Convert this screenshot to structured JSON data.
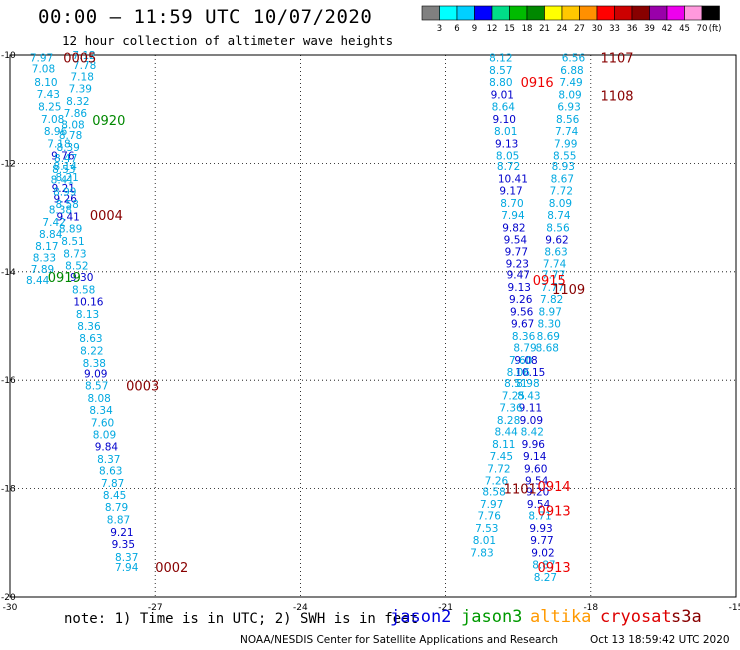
{
  "header": {
    "title": "00:00 – 11:59 UTC 10/07/2020",
    "subtitle": "12 hour collection of altimeter wave heights"
  },
  "legend": {
    "unit": "(ft)",
    "ticks": [
      "3",
      "6",
      "9",
      "12",
      "15",
      "18",
      "21",
      "24",
      "27",
      "30",
      "33",
      "36",
      "39",
      "42",
      "45",
      "70"
    ],
    "colors": [
      "#808080",
      "#00ffff",
      "#00d0ff",
      "#0000ff",
      "#00dd88",
      "#00bb00",
      "#008800",
      "#ffff00",
      "#ffc800",
      "#ff9000",
      "#ff0000",
      "#cc0000",
      "#880000",
      "#9900aa",
      "#ee00ee",
      "#ff99dd",
      "#000000"
    ]
  },
  "map": {
    "lon_range": [
      -30,
      -15
    ],
    "lat_range": [
      -20,
      -10
    ],
    "x_ticks": [
      "-30",
      "-27",
      "-24",
      "-21",
      "-18",
      "-15"
    ],
    "x_values": [
      -30,
      -27,
      -24,
      -21,
      -18,
      -15
    ],
    "y_ticks": [
      "-10",
      "-12",
      "-14",
      "-16",
      "-18",
      "-20"
    ],
    "y_values": [
      -10,
      -12,
      -14,
      -16,
      -18,
      -20
    ],
    "grid": "dotted",
    "colors": {
      "jason2": "#0000dd",
      "jason3": "#009900",
      "altika": "#ff9900",
      "cryosat": "#dd0000",
      "s3a": "#880000",
      "c_cyan": "#00a8e0",
      "c_blue": "#0000cc",
      "c_green": "#008800",
      "c_red": "#ee0000",
      "c_maroon": "#880000"
    }
  },
  "chart_data": {
    "type": "scatter",
    "x_label": "",
    "y_label": "",
    "points": [
      {
        "lon": -29.59,
        "lat": -10.05,
        "v": "7.97",
        "c": "c_cyan"
      },
      {
        "lon": -29.55,
        "lat": -10.25,
        "v": "7.08",
        "c": "c_cyan"
      },
      {
        "lon": -29.5,
        "lat": -10.5,
        "v": "8.10",
        "c": "c_cyan"
      },
      {
        "lon": -29.45,
        "lat": -10.72,
        "v": "7.43",
        "c": "c_cyan"
      },
      {
        "lon": -29.42,
        "lat": -10.95,
        "v": "8.25",
        "c": "c_cyan"
      },
      {
        "lon": -29.36,
        "lat": -11.18,
        "v": "7.08",
        "c": "c_cyan"
      },
      {
        "lon": -29.3,
        "lat": -11.4,
        "v": "8.96",
        "c": "c_cyan"
      },
      {
        "lon": -29.23,
        "lat": -11.63,
        "v": "7.18",
        "c": "c_cyan"
      },
      {
        "lon": -29.15,
        "lat": -11.85,
        "v": "9.76",
        "c": "c_blue"
      },
      {
        "lon": -29.1,
        "lat": -12.05,
        "v": "8.14",
        "c": "c_cyan"
      },
      {
        "lon": -29.06,
        "lat": -12.25,
        "v": "8.21",
        "c": "c_cyan"
      },
      {
        "lon": -29.14,
        "lat": -12.45,
        "v": "9.21",
        "c": "c_blue"
      },
      {
        "lon": -29.1,
        "lat": -12.65,
        "v": "9.26",
        "c": "c_blue"
      },
      {
        "lon": -29.2,
        "lat": -12.85,
        "v": "8.38",
        "c": "c_cyan"
      },
      {
        "lon": -29.33,
        "lat": -13.08,
        "v": "7.42",
        "c": "c_cyan"
      },
      {
        "lon": -29.4,
        "lat": -13.3,
        "v": "8.84",
        "c": "c_cyan"
      },
      {
        "lon": -29.48,
        "lat": -13.52,
        "v": "8.17",
        "c": "c_cyan"
      },
      {
        "lon": -29.53,
        "lat": -13.74,
        "v": "8.33",
        "c": "c_cyan"
      },
      {
        "lon": -29.57,
        "lat": -13.95,
        "v": "7.89",
        "c": "c_cyan"
      },
      {
        "lon": -29.67,
        "lat": -14.15,
        "v": "8.44",
        "c": "c_cyan"
      },
      {
        "lon": -28.71,
        "lat": -10.0,
        "v": "7.12",
        "c": "c_cyan"
      },
      {
        "lon": -28.7,
        "lat": -10.18,
        "v": "7.78",
        "c": "c_cyan"
      },
      {
        "lon": -28.75,
        "lat": -10.4,
        "v": "7.18",
        "c": "c_cyan"
      },
      {
        "lon": -28.79,
        "lat": -10.62,
        "v": "7.39",
        "c": "c_cyan"
      },
      {
        "lon": -28.84,
        "lat": -10.85,
        "v": "8.32",
        "c": "c_cyan"
      },
      {
        "lon": -28.89,
        "lat": -11.07,
        "v": "7.86",
        "c": "c_cyan"
      },
      {
        "lon": -28.94,
        "lat": -11.28,
        "v": "8.08",
        "c": "c_cyan"
      },
      {
        "lon": -28.99,
        "lat": -11.48,
        "v": "8.78",
        "c": "c_cyan"
      },
      {
        "lon": -29.04,
        "lat": -11.7,
        "v": "8.39",
        "c": "c_cyan"
      },
      {
        "lon": -29.09,
        "lat": -11.9,
        "v": "8.47",
        "c": "c_cyan"
      },
      {
        "lon": -29.13,
        "lat": -12.1,
        "v": "8.53",
        "c": "c_cyan"
      },
      {
        "lon": -29.16,
        "lat": -12.3,
        "v": "8.41",
        "c": "c_cyan"
      },
      {
        "lon": -29.11,
        "lat": -12.52,
        "v": "8.99",
        "c": "c_cyan"
      },
      {
        "lon": -29.06,
        "lat": -12.75,
        "v": "8.58",
        "c": "c_cyan"
      },
      {
        "lon": -29.04,
        "lat": -12.98,
        "v": "9.41",
        "c": "c_blue"
      },
      {
        "lon": -28.99,
        "lat": -13.2,
        "v": "8.89",
        "c": "c_cyan"
      },
      {
        "lon": -28.94,
        "lat": -13.43,
        "v": "8.51",
        "c": "c_cyan"
      },
      {
        "lon": -28.9,
        "lat": -13.66,
        "v": "8.73",
        "c": "c_cyan"
      },
      {
        "lon": -28.86,
        "lat": -13.88,
        "v": "8.52",
        "c": "c_cyan"
      },
      {
        "lon": -28.76,
        "lat": -14.1,
        "v": "9.30",
        "c": "c_blue"
      },
      {
        "lon": -28.72,
        "lat": -14.33,
        "v": "8.58",
        "c": "c_cyan"
      },
      {
        "lon": -28.69,
        "lat": -14.55,
        "v": "10.16",
        "c": "c_blue"
      },
      {
        "lon": -28.64,
        "lat": -14.78,
        "v": "8.13",
        "c": "c_cyan"
      },
      {
        "lon": -28.61,
        "lat": -15.0,
        "v": "8.36",
        "c": "c_cyan"
      },
      {
        "lon": -28.57,
        "lat": -15.22,
        "v": "8.63",
        "c": "c_cyan"
      },
      {
        "lon": -28.55,
        "lat": -15.45,
        "v": "8.22",
        "c": "c_cyan"
      },
      {
        "lon": -28.5,
        "lat": -15.68,
        "v": "8.38",
        "c": "c_cyan"
      },
      {
        "lon": -28.47,
        "lat": -15.88,
        "v": "9.09",
        "c": "c_blue"
      },
      {
        "lon": -28.45,
        "lat": -16.1,
        "v": "8.57",
        "c": "c_cyan"
      },
      {
        "lon": -28.4,
        "lat": -16.33,
        "v": "8.08",
        "c": "c_cyan"
      },
      {
        "lon": -28.36,
        "lat": -16.55,
        "v": "8.34",
        "c": "c_cyan"
      },
      {
        "lon": -28.33,
        "lat": -16.78,
        "v": "7.60",
        "c": "c_cyan"
      },
      {
        "lon": -28.29,
        "lat": -17.0,
        "v": "8.09",
        "c": "c_cyan"
      },
      {
        "lon": -28.25,
        "lat": -17.22,
        "v": "9.84",
        "c": "c_blue"
      },
      {
        "lon": -28.2,
        "lat": -17.45,
        "v": "8.37",
        "c": "c_cyan"
      },
      {
        "lon": -28.16,
        "lat": -17.67,
        "v": "8.63",
        "c": "c_cyan"
      },
      {
        "lon": -28.12,
        "lat": -17.9,
        "v": "7.87",
        "c": "c_cyan"
      },
      {
        "lon": -28.08,
        "lat": -18.12,
        "v": "8.45",
        "c": "c_cyan"
      },
      {
        "lon": -28.04,
        "lat": -18.34,
        "v": "8.79",
        "c": "c_cyan"
      },
      {
        "lon": -28.0,
        "lat": -18.57,
        "v": "8.87",
        "c": "c_cyan"
      },
      {
        "lon": -27.93,
        "lat": -18.8,
        "v": "9.21",
        "c": "c_blue"
      },
      {
        "lon": -27.9,
        "lat": -19.02,
        "v": "9.35",
        "c": "c_blue"
      },
      {
        "lon": -27.83,
        "lat": -19.26,
        "v": "8.37",
        "c": "c_cyan"
      },
      {
        "lon": -27.83,
        "lat": -19.45,
        "v": "7.94",
        "c": "c_cyan"
      },
      {
        "lon": -20.1,
        "lat": -10.05,
        "v": "8.12",
        "c": "c_cyan"
      },
      {
        "lon": -20.1,
        "lat": -10.28,
        "v": "8.57",
        "c": "c_cyan"
      },
      {
        "lon": -20.1,
        "lat": -10.5,
        "v": "8.80",
        "c": "c_cyan"
      },
      {
        "lon": -20.07,
        "lat": -10.73,
        "v": "9.01",
        "c": "c_blue"
      },
      {
        "lon": -20.05,
        "lat": -10.95,
        "v": "8.64",
        "c": "c_cyan"
      },
      {
        "lon": -20.03,
        "lat": -11.18,
        "v": "9.10",
        "c": "c_blue"
      },
      {
        "lon": -20.0,
        "lat": -11.4,
        "v": "8.01",
        "c": "c_cyan"
      },
      {
        "lon": -19.98,
        "lat": -11.63,
        "v": "9.13",
        "c": "c_blue"
      },
      {
        "lon": -19.96,
        "lat": -11.85,
        "v": "8.05",
        "c": "c_cyan"
      },
      {
        "lon": -19.94,
        "lat": -12.05,
        "v": "8.72",
        "c": "c_cyan"
      },
      {
        "lon": -19.92,
        "lat": -12.28,
        "v": "10.41",
        "c": "c_blue"
      },
      {
        "lon": -19.89,
        "lat": -12.5,
        "v": "9.17",
        "c": "c_blue"
      },
      {
        "lon": -19.87,
        "lat": -12.73,
        "v": "8.70",
        "c": "c_cyan"
      },
      {
        "lon": -19.85,
        "lat": -12.95,
        "v": "7.94",
        "c": "c_cyan"
      },
      {
        "lon": -19.83,
        "lat": -13.18,
        "v": "9.82",
        "c": "c_blue"
      },
      {
        "lon": -19.8,
        "lat": -13.4,
        "v": "9.54",
        "c": "c_blue"
      },
      {
        "lon": -19.78,
        "lat": -13.63,
        "v": "9.77",
        "c": "c_blue"
      },
      {
        "lon": -19.76,
        "lat": -13.85,
        "v": "9.23",
        "c": "c_blue"
      },
      {
        "lon": -19.74,
        "lat": -14.05,
        "v": "9.47",
        "c": "c_blue"
      },
      {
        "lon": -19.72,
        "lat": -14.28,
        "v": "9.13",
        "c": "c_blue"
      },
      {
        "lon": -19.69,
        "lat": -14.5,
        "v": "9.26",
        "c": "c_blue"
      },
      {
        "lon": -19.67,
        "lat": -14.73,
        "v": "9.56",
        "c": "c_blue"
      },
      {
        "lon": -19.65,
        "lat": -14.95,
        "v": "9.67",
        "c": "c_blue"
      },
      {
        "lon": -19.63,
        "lat": -15.18,
        "v": "8.36",
        "c": "c_cyan"
      },
      {
        "lon": -19.6,
        "lat": -15.4,
        "v": "8.79",
        "c": "c_cyan"
      },
      {
        "lon": -19.58,
        "lat": -15.63,
        "v": "9.08",
        "c": "c_blue"
      },
      {
        "lon": -19.56,
        "lat": -15.85,
        "v": "10.15",
        "c": "c_blue"
      },
      {
        "lon": -19.54,
        "lat": -16.05,
        "v": "8.98",
        "c": "c_cyan"
      },
      {
        "lon": -19.52,
        "lat": -16.28,
        "v": "8.43",
        "c": "c_cyan"
      },
      {
        "lon": -19.49,
        "lat": -16.5,
        "v": "9.11",
        "c": "c_blue"
      },
      {
        "lon": -19.47,
        "lat": -16.73,
        "v": "9.09",
        "c": "c_blue"
      },
      {
        "lon": -19.45,
        "lat": -16.95,
        "v": "8.42",
        "c": "c_cyan"
      },
      {
        "lon": -19.43,
        "lat": -17.18,
        "v": "9.96",
        "c": "c_blue"
      },
      {
        "lon": -19.4,
        "lat": -17.4,
        "v": "9.14",
        "c": "c_blue"
      },
      {
        "lon": -19.38,
        "lat": -17.63,
        "v": "9.60",
        "c": "c_blue"
      },
      {
        "lon": -19.36,
        "lat": -17.85,
        "v": "9.54",
        "c": "c_blue"
      },
      {
        "lon": -19.34,
        "lat": -18.05,
        "v": "9.20",
        "c": "c_blue"
      },
      {
        "lon": -19.32,
        "lat": -18.28,
        "v": "9.54",
        "c": "c_blue"
      },
      {
        "lon": -19.29,
        "lat": -18.5,
        "v": "8.71",
        "c": "c_cyan"
      },
      {
        "lon": -19.27,
        "lat": -18.73,
        "v": "9.93",
        "c": "c_blue"
      },
      {
        "lon": -19.25,
        "lat": -18.95,
        "v": "9.77",
        "c": "c_blue"
      },
      {
        "lon": -19.23,
        "lat": -19.18,
        "v": "9.02",
        "c": "c_blue"
      },
      {
        "lon": -19.21,
        "lat": -19.4,
        "v": "8.87",
        "c": "c_cyan"
      },
      {
        "lon": -19.18,
        "lat": -19.63,
        "v": "8.27",
        "c": "c_cyan"
      },
      {
        "lon": -18.6,
        "lat": -10.05,
        "v": "6.56",
        "c": "c_cyan"
      },
      {
        "lon": -18.63,
        "lat": -10.28,
        "v": "6.88",
        "c": "c_cyan"
      },
      {
        "lon": -18.65,
        "lat": -10.5,
        "v": "7.49",
        "c": "c_cyan"
      },
      {
        "lon": -18.67,
        "lat": -10.73,
        "v": "8.09",
        "c": "c_cyan"
      },
      {
        "lon": -18.69,
        "lat": -10.95,
        "v": "6.93",
        "c": "c_cyan"
      },
      {
        "lon": -18.72,
        "lat": -11.18,
        "v": "8.56",
        "c": "c_cyan"
      },
      {
        "lon": -18.74,
        "lat": -11.4,
        "v": "7.74",
        "c": "c_cyan"
      },
      {
        "lon": -18.76,
        "lat": -11.63,
        "v": "7.99",
        "c": "c_cyan"
      },
      {
        "lon": -18.78,
        "lat": -11.85,
        "v": "8.55",
        "c": "c_cyan"
      },
      {
        "lon": -18.81,
        "lat": -12.05,
        "v": "8.93",
        "c": "c_cyan"
      },
      {
        "lon": -18.83,
        "lat": -12.28,
        "v": "8.67",
        "c": "c_cyan"
      },
      {
        "lon": -18.85,
        "lat": -12.5,
        "v": "7.72",
        "c": "c_cyan"
      },
      {
        "lon": -18.87,
        "lat": -12.73,
        "v": "8.09",
        "c": "c_cyan"
      },
      {
        "lon": -18.9,
        "lat": -12.95,
        "v": "8.74",
        "c": "c_cyan"
      },
      {
        "lon": -18.92,
        "lat": -13.18,
        "v": "8.56",
        "c": "c_cyan"
      },
      {
        "lon": -18.94,
        "lat": -13.4,
        "v": "9.62",
        "c": "c_blue"
      },
      {
        "lon": -18.96,
        "lat": -13.63,
        "v": "8.63",
        "c": "c_cyan"
      },
      {
        "lon": -18.99,
        "lat": -13.85,
        "v": "7.74",
        "c": "c_cyan"
      },
      {
        "lon": -19.01,
        "lat": -14.05,
        "v": "7.77",
        "c": "c_cyan"
      },
      {
        "lon": -19.03,
        "lat": -14.28,
        "v": "7.77",
        "c": "c_cyan"
      },
      {
        "lon": -19.05,
        "lat": -14.5,
        "v": "7.82",
        "c": "c_cyan"
      },
      {
        "lon": -19.08,
        "lat": -14.73,
        "v": "8.97",
        "c": "c_cyan"
      },
      {
        "lon": -19.1,
        "lat": -14.95,
        "v": "8.30",
        "c": "c_cyan"
      },
      {
        "lon": -19.12,
        "lat": -15.18,
        "v": "8.69",
        "c": "c_cyan"
      },
      {
        "lon": -19.14,
        "lat": -15.4,
        "v": "8.68",
        "c": "c_cyan"
      },
      {
        "lon": -19.69,
        "lat": -15.63,
        "v": "7.60",
        "c": "c_cyan"
      },
      {
        "lon": -19.74,
        "lat": -15.85,
        "v": "8.06",
        "c": "c_cyan"
      },
      {
        "lon": -19.79,
        "lat": -16.05,
        "v": "8.51",
        "c": "c_cyan"
      },
      {
        "lon": -19.84,
        "lat": -16.28,
        "v": "7.25",
        "c": "c_cyan"
      },
      {
        "lon": -19.89,
        "lat": -16.5,
        "v": "7.36",
        "c": "c_cyan"
      },
      {
        "lon": -19.94,
        "lat": -16.73,
        "v": "8.28",
        "c": "c_cyan"
      },
      {
        "lon": -19.99,
        "lat": -16.95,
        "v": "8.44",
        "c": "c_cyan"
      },
      {
        "lon": -20.04,
        "lat": -17.18,
        "v": "8.11",
        "c": "c_cyan"
      },
      {
        "lon": -20.09,
        "lat": -17.4,
        "v": "7.45",
        "c": "c_cyan"
      },
      {
        "lon": -20.14,
        "lat": -17.63,
        "v": "7.72",
        "c": "c_cyan"
      },
      {
        "lon": -20.19,
        "lat": -17.85,
        "v": "7.26",
        "c": "c_cyan"
      },
      {
        "lon": -20.24,
        "lat": -18.05,
        "v": "8.58",
        "c": "c_cyan"
      },
      {
        "lon": -20.29,
        "lat": -18.28,
        "v": "7.97",
        "c": "c_cyan"
      },
      {
        "lon": -20.34,
        "lat": -18.5,
        "v": "7.76",
        "c": "c_cyan"
      },
      {
        "lon": -20.39,
        "lat": -18.73,
        "v": "7.53",
        "c": "c_cyan"
      },
      {
        "lon": -20.44,
        "lat": -18.95,
        "v": "8.01",
        "c": "c_cyan"
      },
      {
        "lon": -20.49,
        "lat": -19.18,
        "v": "7.83",
        "c": "c_cyan"
      }
    ],
    "time_labels": [
      {
        "lon": -28.9,
        "lat": -10.05,
        "v": "0005",
        "c": "c_maroon"
      },
      {
        "lon": -28.3,
        "lat": -11.2,
        "v": "0920",
        "c": "c_green"
      },
      {
        "lon": -28.35,
        "lat": -12.95,
        "v": "0004",
        "c": "c_maroon"
      },
      {
        "lon": -29.22,
        "lat": -14.1,
        "v": "0919",
        "c": "c_green"
      },
      {
        "lon": -27.6,
        "lat": -16.1,
        "v": "0003",
        "c": "c_maroon"
      },
      {
        "lon": -27.0,
        "lat": -19.45,
        "v": "0002",
        "c": "c_maroon"
      },
      {
        "lon": -17.8,
        "lat": -10.05,
        "v": "1107",
        "c": "c_maroon"
      },
      {
        "lon": -19.45,
        "lat": -10.5,
        "v": "0916",
        "c": "c_red"
      },
      {
        "lon": -17.8,
        "lat": -10.75,
        "v": "1108",
        "c": "c_maroon"
      },
      {
        "lon": -19.2,
        "lat": -14.15,
        "v": "0915",
        "c": "c_red"
      },
      {
        "lon": -18.8,
        "lat": -14.32,
        "v": "1109",
        "c": "c_maroon"
      },
      {
        "lon": -19.8,
        "lat": -18.0,
        "v": "1101",
        "c": "c_maroon"
      },
      {
        "lon": -19.1,
        "lat": -17.95,
        "v": "0914",
        "c": "c_red"
      },
      {
        "lon": -19.1,
        "lat": -18.4,
        "v": "0913",
        "c": "c_red"
      },
      {
        "lon": -19.1,
        "lat": -19.45,
        "v": "0913",
        "c": "c_red"
      }
    ]
  },
  "footer": {
    "note": "note: 1) Time is in UTC; 2) SWH is in feet",
    "satellites": [
      {
        "name": "jason2",
        "color": "jason2"
      },
      {
        "name": "jason3",
        "color": "jason3"
      },
      {
        "name": "altika",
        "color": "altika"
      },
      {
        "name": "cryosat",
        "color": "cryosat"
      },
      {
        "name": "s3a",
        "color": "s3a"
      }
    ],
    "credit": "NOAA/NESDIS Center for Satellite Applications and Research",
    "timestamp": "Oct 13 18:59:42 UTC 2020"
  }
}
